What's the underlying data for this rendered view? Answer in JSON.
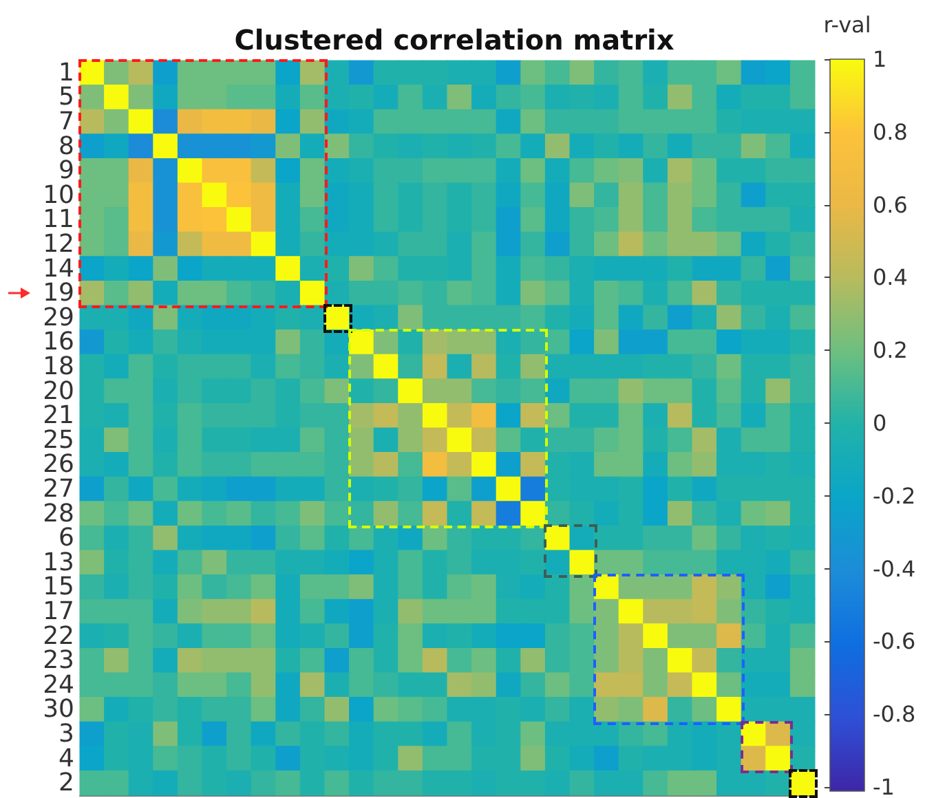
{
  "chart_data": {
    "type": "heatmap",
    "title": "Clustered correlation matrix",
    "clabel": "r-val",
    "categories": [
      null,
      null,
      null,
      null,
      null,
      null,
      null,
      null,
      null,
      null,
      null,
      null,
      null,
      null,
      null,
      null,
      null,
      null,
      null,
      null,
      null,
      null,
      null,
      null,
      null,
      null,
      null,
      null,
      null,
      null
    ],
    "y_categories": [
      "1",
      "5",
      "7",
      "8",
      "9",
      "10",
      "11",
      "12",
      "14",
      "19",
      "29",
      "16",
      "18",
      "20",
      "21",
      "25",
      "26",
      "27",
      "28",
      "6",
      "13",
      "15",
      "17",
      "22",
      "23",
      "24",
      "30",
      "3",
      "4",
      "2"
    ],
    "tick_labels": "y",
    "clim": [
      -1,
      1
    ],
    "cticks": [
      -1,
      -0.8,
      -0.6,
      -0.4,
      -0.2,
      0,
      0.2,
      0.4,
      0.6,
      0.8,
      1
    ],
    "cells": [
      [
        1,
        0.25,
        0.4,
        -0.25,
        0.2,
        0.2,
        0.2,
        0.2,
        -0.2,
        0.35,
        -0.05,
        -0.3,
        0,
        0,
        0,
        -0.05,
        -0.05,
        -0.25,
        0.2,
        0.1,
        0.25,
        0.05,
        0.1,
        -0.05,
        0.1,
        0.1,
        0.2,
        -0.25,
        -0.2,
        0.1
      ],
      [
        0.25,
        1,
        0.25,
        -0.15,
        0.2,
        0.2,
        0.15,
        0.15,
        -0.1,
        0.15,
        -0.05,
        0,
        -0.1,
        0.1,
        -0.05,
        0.25,
        -0.1,
        0.05,
        0.1,
        -0.05,
        0,
        -0.05,
        0.1,
        0,
        0.3,
        0.1,
        -0.1,
        0,
        0,
        0.1
      ],
      [
        0.4,
        0.25,
        1,
        -0.4,
        0.6,
        0.7,
        0.7,
        0.6,
        -0.2,
        0.3,
        -0.15,
        -0.1,
        0.1,
        0.1,
        0.1,
        0.1,
        0.1,
        -0.15,
        0.2,
        0.05,
        0.05,
        0.05,
        0.1,
        0.1,
        0.1,
        0.1,
        0,
        -0.05,
        -0.05,
        -0.05
      ],
      [
        -0.25,
        -0.15,
        -0.4,
        1,
        -0.35,
        -0.35,
        -0.35,
        -0.3,
        0.25,
        -0.1,
        0.25,
        0.05,
        0,
        -0.05,
        0,
        -0.05,
        0,
        0.1,
        -0.1,
        0.3,
        -0.1,
        0,
        -0.1,
        0.05,
        -0.1,
        0.05,
        0.05,
        0.25,
        0.1,
        -0.1
      ],
      [
        0.2,
        0.2,
        0.6,
        -0.35,
        1,
        0.75,
        0.75,
        0.45,
        -0.2,
        0.2,
        -0.1,
        -0.05,
        0.05,
        0.05,
        0.1,
        0.1,
        0.1,
        -0.1,
        0.2,
        -0.1,
        0.1,
        0.2,
        0.25,
        -0.05,
        0.35,
        0.2,
        0,
        0,
        0.05,
        0.05
      ],
      [
        0.2,
        0.2,
        0.7,
        -0.35,
        0.75,
        1,
        0.8,
        0.65,
        -0.1,
        0.2,
        -0.15,
        -0.1,
        0.05,
        0,
        0.05,
        0,
        0.05,
        -0.15,
        0.1,
        -0.15,
        0.25,
        0.05,
        0.3,
        0.1,
        0.3,
        0.2,
        0.05,
        -0.25,
        0,
        0
      ],
      [
        0.2,
        0.15,
        0.7,
        -0.35,
        0.75,
        0.8,
        1,
        0.65,
        -0.1,
        0.1,
        -0.15,
        -0.1,
        0.05,
        0,
        0.05,
        0,
        0.05,
        -0.25,
        0.15,
        -0.15,
        0.05,
        0.1,
        0.3,
        0.1,
        0.3,
        0.1,
        0.05,
        0.05,
        0.05,
        -0.05
      ],
      [
        0.2,
        0.15,
        0.6,
        -0.3,
        0.45,
        0.65,
        0.65,
        1,
        -0.1,
        0.05,
        -0.1,
        -0.1,
        -0.05,
        0.05,
        0.05,
        -0.05,
        0.1,
        -0.25,
        0.05,
        -0.25,
        0.05,
        0.2,
        0.4,
        0.2,
        0.3,
        0.3,
        0.2,
        -0.15,
        0,
        0.05
      ],
      [
        -0.2,
        -0.1,
        -0.2,
        0.25,
        -0.2,
        -0.1,
        -0.1,
        -0.1,
        1,
        -0.05,
        0,
        0.25,
        0.1,
        0,
        0,
        -0.05,
        0.1,
        -0.1,
        0.1,
        0.05,
        -0.05,
        -0.1,
        -0.1,
        -0.1,
        0,
        -0.15,
        -0.15,
        0.05,
        -0.25,
        0.1
      ],
      [
        0.35,
        0.15,
        0.3,
        -0.1,
        0.2,
        0.2,
        0.1,
        0.05,
        -0.05,
        1,
        -0.05,
        0.05,
        0.05,
        0.1,
        0.05,
        0.15,
        0.1,
        -0.1,
        0.25,
        0.15,
        -0.05,
        0.15,
        0.1,
        -0.05,
        0.1,
        0.35,
        0.05,
        0,
        0,
        0
      ],
      [
        -0.05,
        -0.05,
        -0.15,
        0.25,
        -0.1,
        -0.15,
        -0.15,
        -0.1,
        0,
        -0.05,
        1,
        -0.1,
        -0.05,
        0.25,
        0.05,
        0.05,
        0.05,
        0.05,
        0.1,
        0,
        -0.1,
        0.15,
        -0.15,
        0.05,
        -0.25,
        -0.05,
        0.3,
        0.05,
        -0.05,
        0.1
      ],
      [
        -0.3,
        0,
        -0.1,
        0.05,
        -0.05,
        -0.1,
        -0.1,
        -0.1,
        0.25,
        0.05,
        -0.1,
        1,
        0.25,
        0,
        0.35,
        0.3,
        0.3,
        -0.05,
        0.05,
        0.1,
        -0.2,
        0.25,
        -0.25,
        -0.25,
        0.1,
        0.1,
        -0.2,
        -0.1,
        -0.1,
        0
      ],
      [
        0,
        -0.1,
        0.1,
        0,
        0.05,
        0.05,
        0.05,
        -0.05,
        0.1,
        0.05,
        -0.05,
        0.25,
        1,
        0.05,
        0.45,
        -0.05,
        0.4,
        0,
        0.3,
        -0.05,
        -0.05,
        -0.05,
        -0.05,
        0,
        0,
        0.05,
        0.2,
        0,
        0,
        0.05
      ],
      [
        0,
        0.1,
        0.1,
        -0.05,
        0.05,
        0,
        0,
        0.05,
        0,
        0.1,
        0.25,
        0,
        0.05,
        1,
        0.3,
        0.3,
        0.1,
        0.05,
        0.1,
        -0.15,
        0.1,
        0.1,
        0.3,
        0.2,
        0.2,
        0,
        0.15,
        0,
        0.3,
        0.05
      ],
      [
        0,
        -0.05,
        0.1,
        0,
        0.1,
        0.05,
        0.05,
        0.05,
        0,
        0.05,
        0.05,
        0.35,
        0.45,
        0.3,
        1,
        0.45,
        0.7,
        -0.2,
        0.45,
        0.2,
        0,
        0,
        0.2,
        -0.05,
        0.4,
        0,
        0.1,
        -0.1,
        0.1,
        0
      ],
      [
        -0.05,
        0.25,
        0.1,
        -0.05,
        0.1,
        0,
        0,
        -0.05,
        -0.05,
        0.15,
        0.05,
        0.3,
        -0.05,
        0.3,
        0.45,
        1,
        0.45,
        0.15,
        0,
        0.05,
        0.05,
        0.15,
        0.2,
        0,
        0.1,
        0.35,
        -0.05,
        0.1,
        0.1,
        0
      ],
      [
        -0.05,
        -0.1,
        0.1,
        0,
        0.1,
        0.05,
        0.05,
        0.1,
        0.1,
        0.1,
        0.05,
        0.3,
        0.4,
        0.1,
        0.7,
        0.45,
        1,
        -0.25,
        0.45,
        0,
        -0.05,
        0.2,
        0.2,
        -0.1,
        0.2,
        0.3,
        -0.05,
        -0.05,
        0,
        -0.05
      ],
      [
        -0.25,
        0.05,
        -0.15,
        0.1,
        -0.1,
        -0.15,
        -0.25,
        -0.25,
        -0.1,
        -0.1,
        0.05,
        -0.05,
        0,
        0.05,
        -0.2,
        0.15,
        -0.25,
        1,
        -0.5,
        0,
        -0.05,
        -0.05,
        0,
        -0.2,
        0,
        -0.15,
        0,
        0,
        0,
        0
      ],
      [
        0.2,
        0.1,
        0.2,
        -0.1,
        0.2,
        0.1,
        0.15,
        0.05,
        0.1,
        0.25,
        0.1,
        0.05,
        0.3,
        0.1,
        0.45,
        0,
        0.45,
        -0.5,
        1,
        0.05,
        0,
        -0.1,
        0,
        -0.2,
        0.3,
        0.05,
        -0.05,
        0.2,
        0.25,
        0
      ],
      [
        0.1,
        -0.05,
        0.05,
        0.3,
        -0.1,
        -0.15,
        -0.15,
        -0.25,
        0.05,
        0.15,
        0,
        0.1,
        -0.05,
        -0.15,
        0.2,
        0.05,
        0,
        0,
        0.05,
        1,
        -0.1,
        0,
        0,
        0.05,
        0.05,
        0.2,
        0.05,
        -0.05,
        0,
        -0.05
      ],
      [
        0.25,
        0,
        0.05,
        -0.1,
        0.1,
        0.25,
        0.05,
        0.05,
        -0.05,
        -0.05,
        -0.1,
        -0.2,
        -0.05,
        0.1,
        0,
        0.05,
        -0.05,
        -0.05,
        0,
        -0.1,
        1,
        0.2,
        0.2,
        0.1,
        0.1,
        0.1,
        -0.05,
        -0.05,
        -0.1,
        0.05
      ],
      [
        0.05,
        -0.05,
        0.05,
        0,
        0.2,
        0.05,
        0.1,
        0.2,
        -0.1,
        0.15,
        0.15,
        0.25,
        -0.05,
        0.1,
        0,
        0.15,
        0.2,
        -0.05,
        -0.1,
        0,
        0.2,
        1,
        0.25,
        0.25,
        0.25,
        0.45,
        0.3,
        -0.05,
        -0.25,
        -0.05
      ],
      [
        0.1,
        0.1,
        0.1,
        -0.1,
        0.25,
        0.3,
        0.3,
        0.4,
        -0.1,
        0.1,
        -0.15,
        -0.25,
        -0.05,
        0.3,
        0.2,
        0.2,
        0.2,
        0,
        0,
        0,
        0.2,
        0.25,
        1,
        0.4,
        0.4,
        0.45,
        0.25,
        0.05,
        0,
        -0.05
      ],
      [
        -0.05,
        0,
        0.1,
        0.05,
        -0.05,
        0.1,
        0.1,
        0.2,
        -0.1,
        -0.05,
        0.05,
        -0.25,
        0,
        0.2,
        -0.05,
        0,
        -0.1,
        -0.2,
        -0.2,
        0.05,
        0.1,
        0.25,
        0.4,
        1,
        0.25,
        0.25,
        0.55,
        0.1,
        -0.05,
        0.1
      ],
      [
        0.1,
        0.3,
        0.1,
        -0.1,
        0.35,
        0.3,
        0.3,
        0.3,
        0,
        0.1,
        -0.25,
        0.1,
        0,
        0.2,
        0.4,
        0.1,
        0.2,
        0,
        0.3,
        0.05,
        0.1,
        0.25,
        0.4,
        0.25,
        1,
        0.45,
        0.05,
        -0.05,
        -0.05,
        0.2
      ],
      [
        0.1,
        0.1,
        0.1,
        0.05,
        0.2,
        0.2,
        0.1,
        0.3,
        -0.15,
        0.35,
        -0.05,
        0.1,
        0.05,
        0,
        0,
        0.35,
        0.3,
        -0.15,
        0.05,
        0.2,
        0.1,
        0.45,
        0.45,
        0.25,
        0.45,
        1,
        0.2,
        -0.1,
        -0.1,
        0.2
      ],
      [
        0.2,
        -0.1,
        0,
        0.05,
        0,
        0.05,
        0.05,
        0.2,
        -0.15,
        0.05,
        0.3,
        -0.2,
        0.2,
        0.15,
        0.1,
        -0.05,
        -0.05,
        0,
        -0.05,
        0.05,
        -0.05,
        0.3,
        0.25,
        0.55,
        0.05,
        0.2,
        1,
        -0.05,
        -0.05,
        -0.05
      ],
      [
        -0.25,
        0,
        -0.05,
        0.25,
        0,
        -0.25,
        0.05,
        -0.15,
        0.05,
        0,
        0.05,
        -0.1,
        0,
        0,
        -0.1,
        0.1,
        -0.05,
        0,
        0.2,
        -0.05,
        -0.05,
        -0.05,
        0.05,
        0.1,
        -0.05,
        -0.1,
        -0.05,
        1,
        0.55,
        -0.05
      ],
      [
        -0.2,
        0,
        -0.05,
        0.1,
        0.05,
        0,
        0.05,
        0,
        -0.25,
        0,
        -0.05,
        -0.1,
        0,
        0.3,
        0.1,
        0.1,
        0,
        0,
        0.25,
        0,
        -0.1,
        -0.25,
        0,
        -0.05,
        -0.05,
        -0.1,
        -0.05,
        0.55,
        1,
        0
      ],
      [
        0.1,
        0.1,
        -0.05,
        -0.1,
        0.05,
        0,
        -0.05,
        0.05,
        0.1,
        0,
        0.1,
        0,
        0.05,
        0.05,
        0,
        0,
        -0.05,
        0,
        0,
        -0.05,
        0.05,
        -0.05,
        -0.05,
        0.1,
        0.2,
        0.2,
        -0.05,
        -0.05,
        0,
        1
      ]
    ]
  }
}
